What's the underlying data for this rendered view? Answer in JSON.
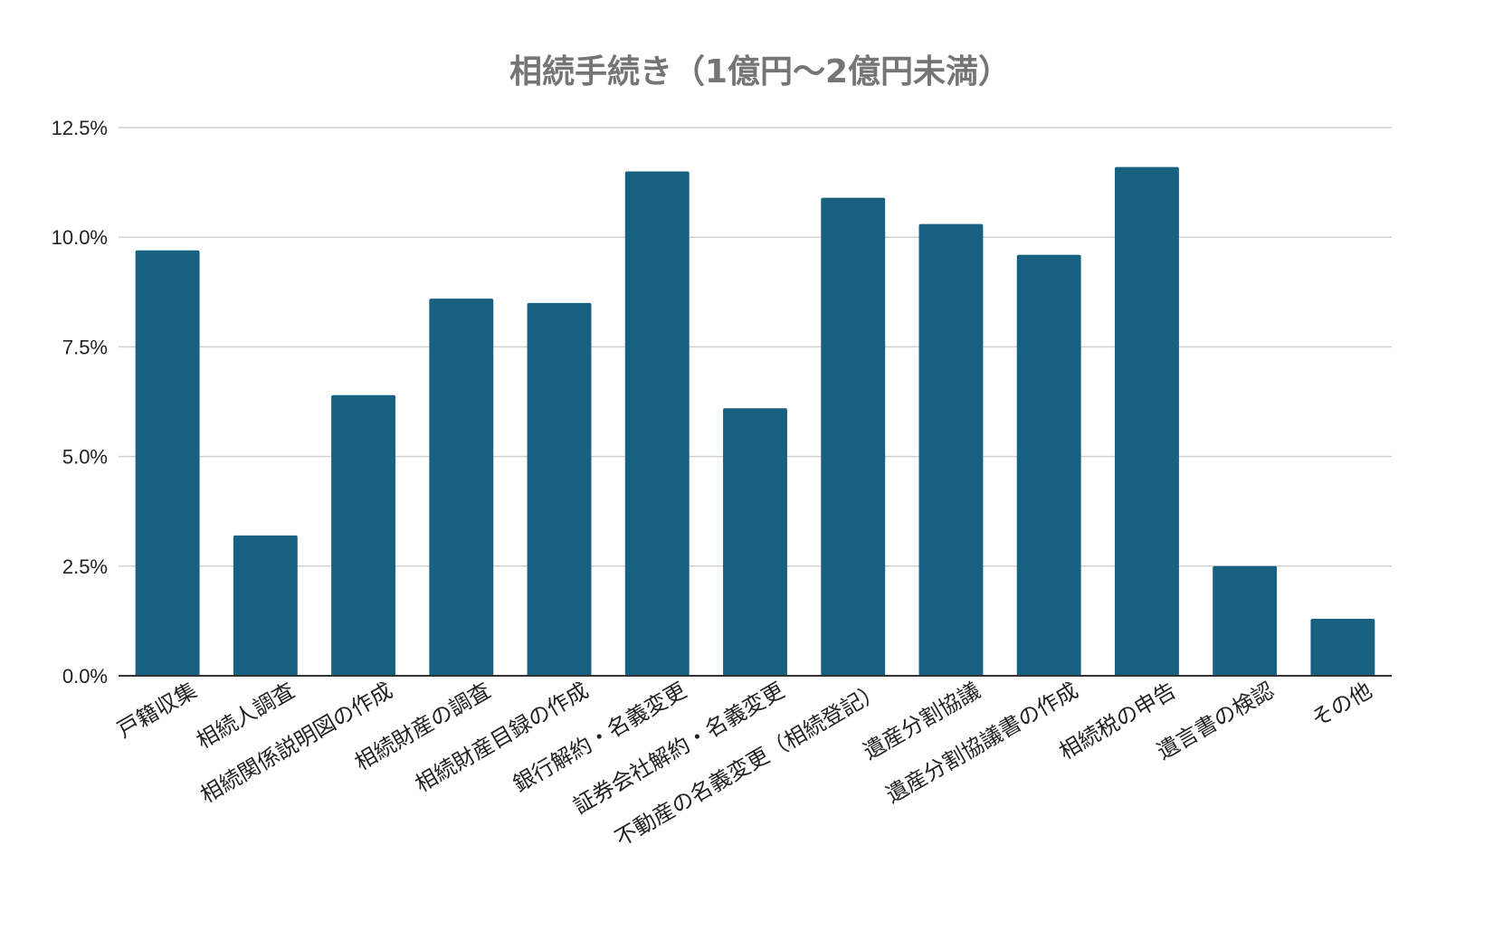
{
  "chart_data": {
    "type": "bar",
    "title": "相続手続き（1億円～2億円未満）",
    "xlabel": "",
    "ylabel": "",
    "ylim": [
      0,
      12.5
    ],
    "y_ticks": [
      "0.0%",
      "2.5%",
      "5.0%",
      "7.5%",
      "10.0%",
      "12.5%"
    ],
    "y_tick_values": [
      0,
      2.5,
      5,
      7.5,
      10,
      12.5
    ],
    "grid": true,
    "legend": "none",
    "bar_color": "#17607f",
    "categories": [
      "戸籍収集",
      "相続人調査",
      "相続関係説明図の作成",
      "相続財産の調査",
      "相続財産目録の作成",
      "銀行解約・名義変更",
      "証券会社解約・名義変更",
      "不動産の名義変更（相続登記）",
      "遺産分割協議",
      "遺産分割協議書の作成",
      "相続税の申告",
      "遺言書の検認",
      "その他"
    ],
    "values": [
      9.7,
      3.2,
      6.4,
      8.6,
      8.5,
      11.5,
      6.1,
      10.9,
      10.3,
      9.6,
      11.6,
      2.5,
      1.3
    ]
  }
}
